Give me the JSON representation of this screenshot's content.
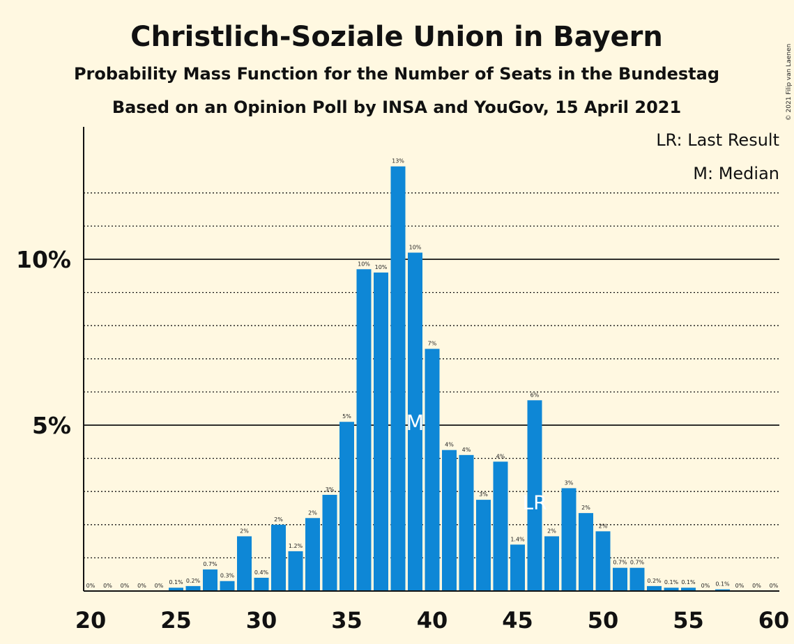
{
  "chart_data": {
    "type": "bar",
    "title": "Christlich-Soziale Union in Bayern",
    "subtitle": "Probability Mass Function for the Number of Seats in the Bundestag",
    "subtitle2": "Based on an Opinion Poll by INSA and YouGov, 15 April 2021",
    "copyright": "© 2021 Filip van Laenen",
    "legend": {
      "lr": "LR: Last Result",
      "m": "M: Median",
      "placement": "top-right"
    },
    "x": [
      20,
      21,
      22,
      23,
      24,
      25,
      26,
      27,
      28,
      29,
      30,
      31,
      32,
      33,
      34,
      35,
      36,
      37,
      38,
      39,
      40,
      41,
      42,
      43,
      44,
      45,
      46,
      47,
      48,
      49,
      50,
      51,
      52,
      53,
      54,
      55,
      56,
      57,
      58,
      59,
      60
    ],
    "values": [
      0,
      0,
      0,
      0,
      0,
      0.1,
      0.15,
      0.65,
      0.3,
      1.65,
      0.4,
      2.0,
      1.2,
      2.2,
      2.9,
      5.1,
      9.7,
      9.6,
      12.8,
      10.2,
      7.3,
      4.25,
      4.1,
      2.75,
      3.9,
      1.4,
      5.75,
      1.65,
      3.1,
      2.35,
      1.8,
      0.7,
      0.7,
      0.15,
      0.1,
      0.1,
      0,
      0.05,
      0,
      0,
      0
    ],
    "labels": [
      "0%",
      "0%",
      "0%",
      "0%",
      "0%",
      "0.1%",
      "0.2%",
      "0.7%",
      "0.3%",
      "2%",
      "0.4%",
      "2%",
      "1.2%",
      "2%",
      "3%",
      "5%",
      "10%",
      "10%",
      "13%",
      "10%",
      "7%",
      "4%",
      "4%",
      "3%",
      "4%",
      "1.4%",
      "6%",
      "2%",
      "3%",
      "2%",
      "2%",
      "0.7%",
      "0.7%",
      "0.2%",
      "0.1%",
      "0.1%",
      "0%",
      "0.1%",
      "0%",
      "0%",
      "0%"
    ],
    "xticks": [
      20,
      25,
      30,
      35,
      40,
      45,
      50,
      55,
      60
    ],
    "yticks": [
      {
        "value": 5,
        "label": "5%"
      },
      {
        "value": 10,
        "label": "10%"
      }
    ],
    "ylim": [
      0,
      14
    ],
    "median": 39,
    "median_label": "M",
    "last_result": 46,
    "last_result_label": "LR",
    "colors": {
      "bar": "#0e87d6",
      "background": "#fff8e1"
    }
  }
}
